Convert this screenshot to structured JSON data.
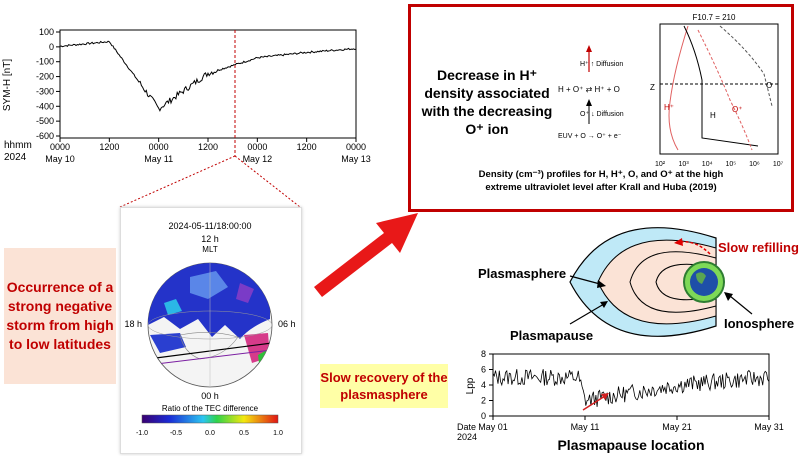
{
  "sym_h_panel": {
    "ylabel": "SYM-H [nT]",
    "yticks": [
      "100",
      "0",
      "-100",
      "-200",
      "-300",
      "-400",
      "-500",
      "-600"
    ],
    "hhmm_label": "hhmm",
    "year_label": "2024",
    "xticks": [
      {
        "time": "0000",
        "date": "May 10"
      },
      {
        "time": "1200",
        "date": ""
      },
      {
        "time": "0000",
        "date": "May 11"
      },
      {
        "time": "1200",
        "date": ""
      },
      {
        "time": "0000",
        "date": "May 12"
      },
      {
        "time": "1200",
        "date": ""
      },
      {
        "time": "0000",
        "date": "May 13"
      }
    ]
  },
  "tec_map": {
    "timestamp": "2024-05-11/18:00:00",
    "top_label": "12 h",
    "mlt_label": "MLT",
    "left_label": "18 h",
    "right_label": "06 h",
    "bottom_label": "00 h",
    "colorbar_title": "Ratio of the TEC difference",
    "colorbar_ticks": [
      "-1.0",
      "-0.5",
      "0.0",
      "0.5",
      "1.0"
    ]
  },
  "storm_box_text": "Occurrence of a strong negative storm from high to low latitudes",
  "h_decrease": {
    "title": "Decrease in H⁺ density associated with the decreasing O⁺ ion",
    "diffusion_top": "H⁺ ↑ Diffusion",
    "reaction": "H + O⁺ ⇄ H⁺ + O",
    "diffusion_bottom": "O⁺ ↓ Diffusion",
    "euv_reaction": "EUV + O → O⁺ + e⁻",
    "f107": "F10.7 = 210",
    "z_label": "Z",
    "profile_labels": [
      "H⁺",
      "H",
      "O",
      "O⁺"
    ],
    "xticks": [
      "10²",
      "10³",
      "10⁴",
      "10⁵",
      "10⁶",
      "10⁷"
    ],
    "caption_line1": "Density (cm⁻³) profiles for H, H⁺, O, and O⁺ at the high",
    "caption_line2": "extreme ultraviolet level after Krall and Huba (2019)"
  },
  "plasmasphere_diagram": {
    "slow_refilling": "Slow refilling",
    "plasmasphere": "Plasmasphere",
    "plasmapause": "Plasmapause",
    "ionosphere": "Ionosphere"
  },
  "slow_recovery_text": "Slow recovery of the plasmasphere",
  "lpp_panel": {
    "ylabel": "Lpp",
    "yticks": [
      "8",
      "6",
      "4",
      "2",
      "0"
    ],
    "date_label": "Date",
    "year_label": "2024",
    "xticks": [
      "May 01",
      "May 11",
      "May 21",
      "May 31"
    ],
    "title": "Plasmapause location"
  },
  "colors": {
    "accent_red": "#c00000",
    "storm_bg": "#fbe3d6",
    "recovery_bg": "#ffffa6",
    "plasmasphere_fill": "#bfe9f7",
    "inner_fill": "#fbe3d6"
  },
  "chart_data": [
    {
      "type": "line",
      "ylabel": "SYM-H [nT]",
      "x": [
        "May 10 00:00",
        "May 10 12:00",
        "May 11 00:00",
        "May 11 12:00",
        "May 12 00:00",
        "May 12 12:00",
        "May 13 00:00"
      ],
      "ylim": [
        -600,
        100
      ],
      "series": [
        {
          "values": [
            -5,
            25,
            -410,
            -180,
            -80,
            -45,
            -20
          ]
        }
      ]
    },
    {
      "type": "line",
      "ylabel": "Lpp",
      "x": [
        "May 01",
        "May 11",
        "May 21",
        "May 31"
      ],
      "ylim": [
        0,
        8
      ],
      "series": [
        {
          "values": [
            5.0,
            2.0,
            4.0,
            5.0
          ]
        }
      ]
    }
  ]
}
